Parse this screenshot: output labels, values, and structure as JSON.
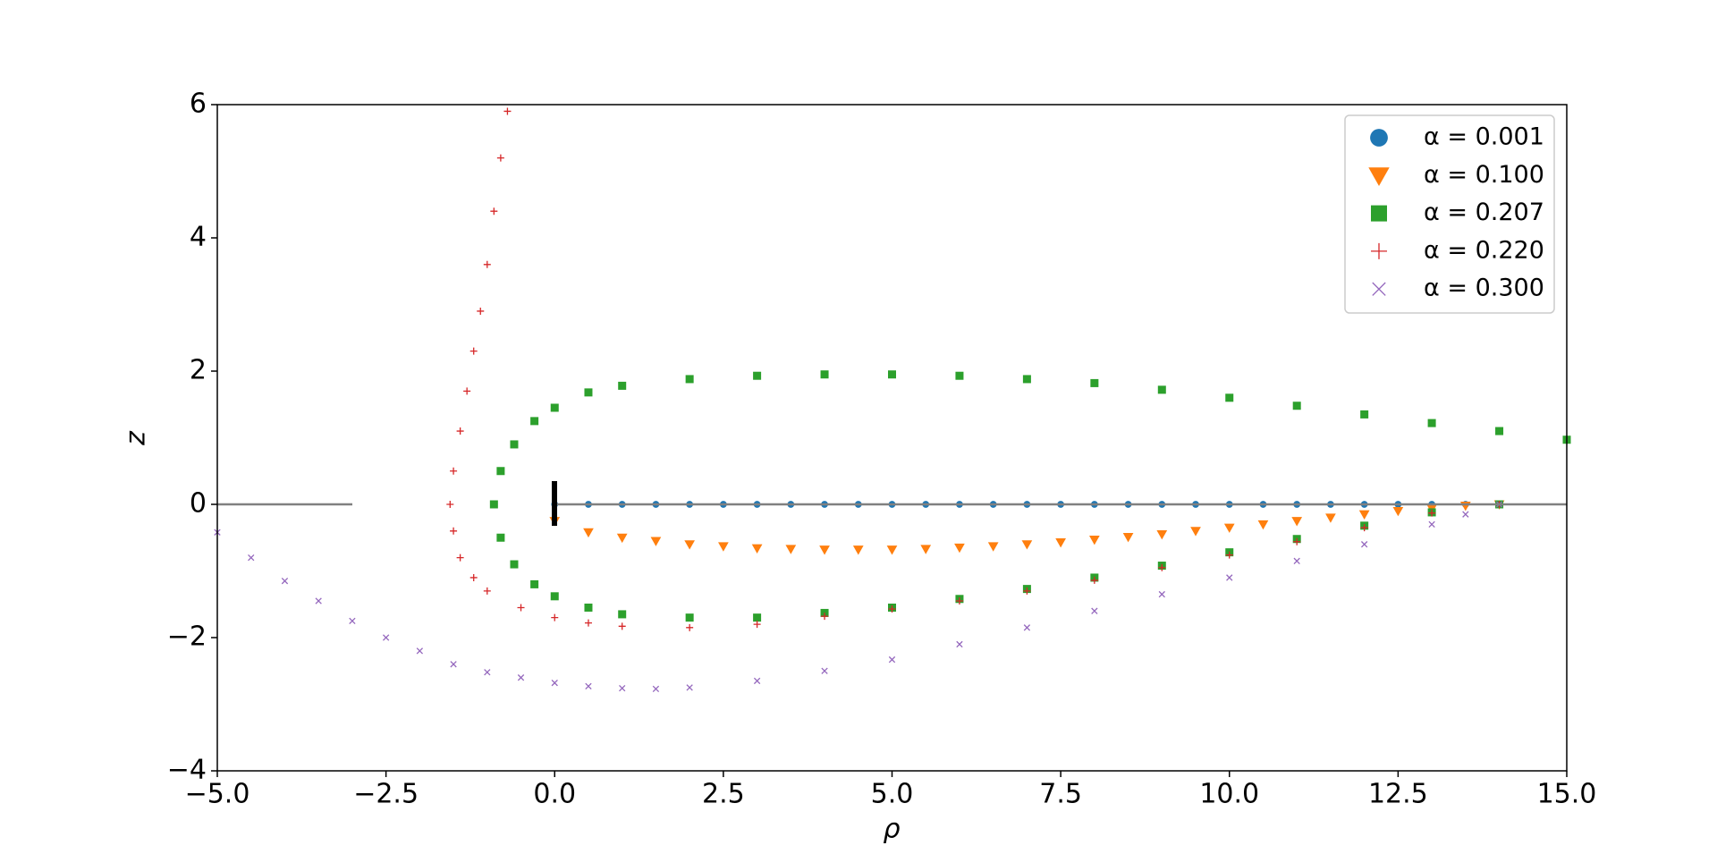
{
  "chart_data": {
    "type": "scatter",
    "xlabel": "ρ",
    "ylabel": "z",
    "xlim": [
      -5,
      15
    ],
    "ylim": [
      -4,
      6
    ],
    "xticks": [
      {
        "value": -5,
        "label": "−5.0"
      },
      {
        "value": -2.5,
        "label": "−2.5"
      },
      {
        "value": 0,
        "label": "0.0"
      },
      {
        "value": 2.5,
        "label": "2.5"
      },
      {
        "value": 5,
        "label": "5.0"
      },
      {
        "value": 7.5,
        "label": "7.5"
      },
      {
        "value": 10,
        "label": "10.0"
      },
      {
        "value": 12.5,
        "label": "12.5"
      },
      {
        "value": 15,
        "label": "15.0"
      }
    ],
    "yticks": [
      {
        "value": -4,
        "label": "−4"
      },
      {
        "value": -2,
        "label": "−2"
      },
      0,
      2,
      4,
      6
    ],
    "legend": "upper right",
    "series": [
      {
        "name": "α = 0.001",
        "color": "#1f77b4",
        "marker": "circle",
        "x": [
          0,
          0.5,
          1,
          1.5,
          2,
          2.5,
          3,
          3.5,
          4,
          4.5,
          5,
          5.5,
          6,
          6.5,
          7,
          7.5,
          8,
          8.5,
          9,
          9.5,
          10,
          10.5,
          11,
          11.5,
          12,
          12.5,
          13,
          13.5,
          14
        ],
        "y": [
          0,
          0,
          0,
          0,
          0,
          0,
          0,
          0,
          0,
          0,
          0,
          0,
          0,
          0,
          0,
          0,
          0,
          0,
          0,
          0,
          0,
          0,
          0,
          0,
          0,
          0,
          0,
          0,
          0
        ]
      },
      {
        "name": "α = 0.100",
        "color": "#ff7f0e",
        "marker": "triangle",
        "x": [
          0,
          0.5,
          1,
          1.5,
          2,
          2.5,
          3,
          3.5,
          4,
          4.5,
          5,
          5.5,
          6,
          6.5,
          7,
          7.5,
          8,
          8.5,
          9,
          9.5,
          10,
          10.5,
          11,
          11.5,
          12,
          12.5,
          13,
          13.5,
          14
        ],
        "y": [
          -0.25,
          -0.42,
          -0.5,
          -0.55,
          -0.6,
          -0.63,
          -0.66,
          -0.67,
          -0.68,
          -0.68,
          -0.68,
          -0.67,
          -0.65,
          -0.63,
          -0.6,
          -0.57,
          -0.53,
          -0.49,
          -0.45,
          -0.4,
          -0.35,
          -0.3,
          -0.25,
          -0.2,
          -0.15,
          -0.1,
          -0.06,
          -0.02,
          0
        ]
      },
      {
        "name": "α = 0.207",
        "color": "#2ca02c",
        "marker": "square",
        "x": [
          15,
          14,
          13,
          12,
          11,
          10,
          9,
          8,
          7,
          6,
          5,
          4,
          3,
          2,
          1,
          0.5,
          0,
          -0.3,
          -0.6,
          -0.8,
          -0.9,
          -0.8,
          -0.6,
          -0.3,
          0,
          0.5,
          1,
          2,
          3,
          4,
          5,
          6,
          7,
          8,
          9,
          10,
          11,
          12,
          13,
          14
        ],
        "y": [
          0.97,
          1.1,
          1.22,
          1.35,
          1.48,
          1.6,
          1.72,
          1.82,
          1.88,
          1.93,
          1.95,
          1.95,
          1.93,
          1.88,
          1.78,
          1.68,
          1.45,
          1.25,
          0.9,
          0.5,
          0,
          -0.5,
          -0.9,
          -1.2,
          -1.38,
          -1.55,
          -1.65,
          -1.7,
          -1.7,
          -1.63,
          -1.55,
          -1.42,
          -1.27,
          -1.1,
          -0.92,
          -0.72,
          -0.52,
          -0.32,
          -0.12,
          0
        ]
      },
      {
        "name": "α = 0.220",
        "color": "#d62728",
        "marker": "plus",
        "x": [
          -0.7,
          -0.8,
          -0.9,
          -1.0,
          -1.1,
          -1.2,
          -1.3,
          -1.4,
          -1.5,
          -1.55,
          -1.5,
          -1.4,
          -1.2,
          -1,
          -0.5,
          0,
          0.5,
          1,
          2,
          3,
          4,
          5,
          6,
          7,
          8,
          9,
          10,
          11,
          12,
          13,
          14
        ],
        "y": [
          5.9,
          5.2,
          4.4,
          3.6,
          2.9,
          2.3,
          1.7,
          1.1,
          0.5,
          0,
          -0.4,
          -0.8,
          -1.1,
          -1.3,
          -1.55,
          -1.7,
          -1.78,
          -1.83,
          -1.85,
          -1.8,
          -1.68,
          -1.57,
          -1.45,
          -1.3,
          -1.14,
          -0.95,
          -0.76,
          -0.56,
          -0.35,
          -0.13,
          0
        ]
      },
      {
        "name": "α = 0.300",
        "color": "#9467bd",
        "marker": "x",
        "x": [
          -5,
          -4.5,
          -4,
          -3.5,
          -3,
          -2.5,
          -2,
          -1.5,
          -1,
          -0.5,
          0,
          0.5,
          1,
          1.5,
          2,
          3,
          4,
          5,
          6,
          7,
          8,
          9,
          10,
          11,
          12,
          13,
          13.5,
          14
        ],
        "y": [
          -0.42,
          -0.8,
          -1.15,
          -1.45,
          -1.75,
          -2.0,
          -2.2,
          -2.4,
          -2.52,
          -2.6,
          -2.68,
          -2.73,
          -2.76,
          -2.77,
          -2.75,
          -2.65,
          -2.5,
          -2.33,
          -2.1,
          -1.85,
          -1.6,
          -1.35,
          -1.1,
          -0.85,
          -0.6,
          -0.3,
          -0.15,
          0
        ]
      }
    ]
  }
}
